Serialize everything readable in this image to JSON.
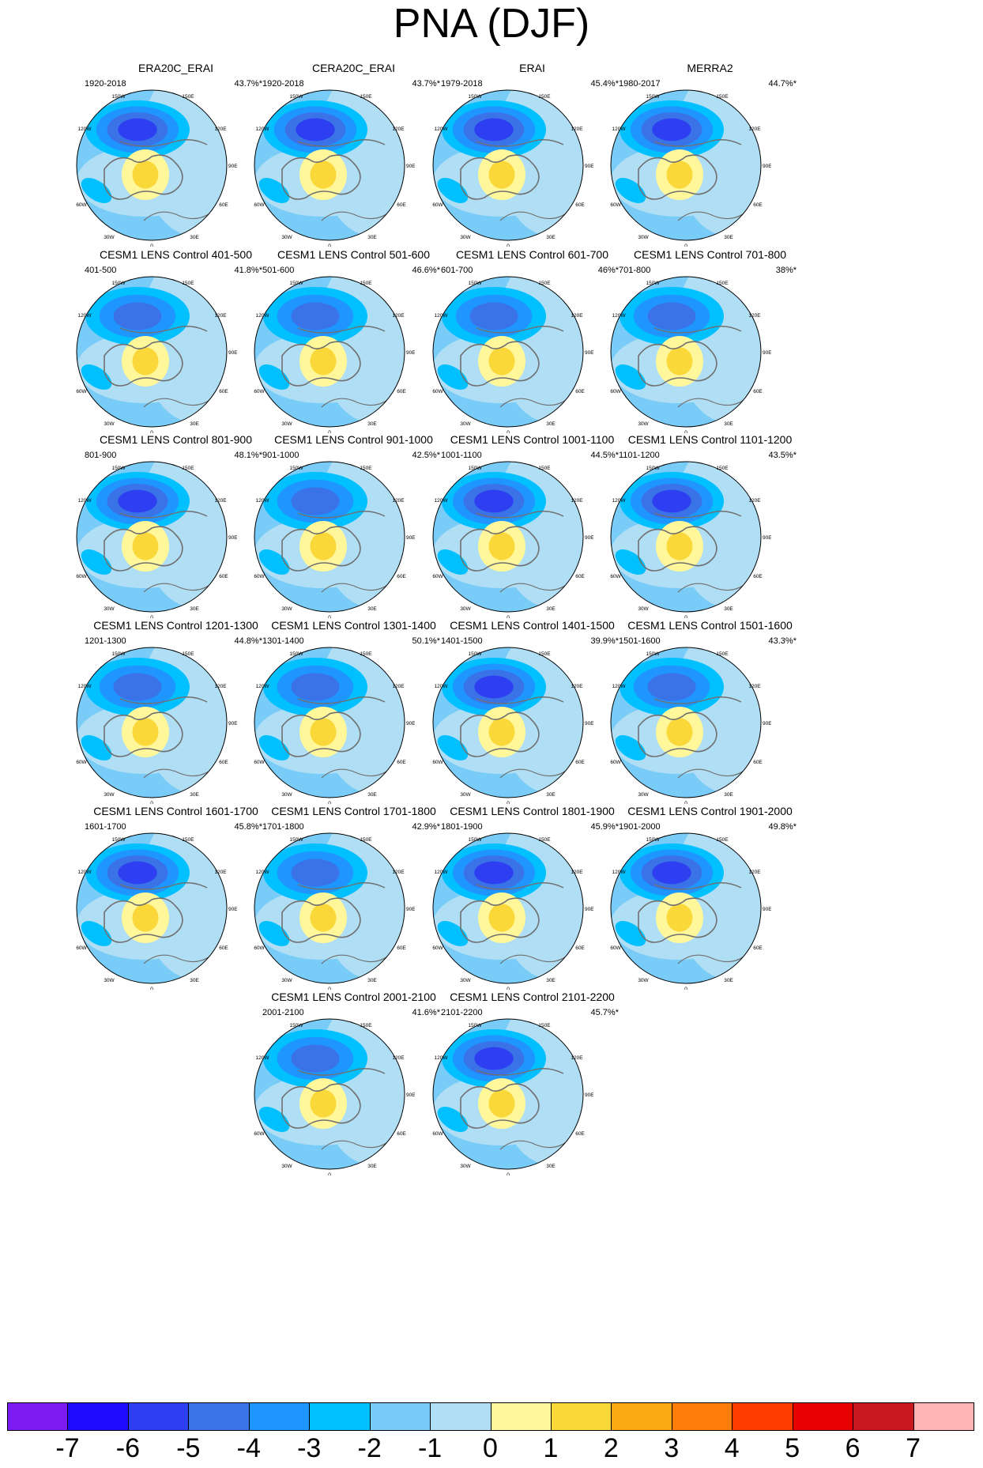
{
  "title": "PNA (DJF)",
  "chart_data": {
    "type": "heatmap",
    "projection": "north polar stereographic",
    "title": "PNA (DJF)",
    "map_labels": {
      "top": "180",
      "left_lon": [
        "150W",
        "120W",
        "90W",
        "60W",
        "30W"
      ],
      "bottom": "0",
      "right_lon": [
        "150E",
        "120E",
        "90E",
        "60E",
        "30E"
      ]
    },
    "colorbar": {
      "colors": [
        "#7d1cf0",
        "#1e0cff",
        "#2d3ff0",
        "#3a72e8",
        "#1f96ff",
        "#00c0ff",
        "#78ccf7",
        "#b0def4",
        "#fff79a",
        "#fbd83a",
        "#faa912",
        "#ff7d0a",
        "#ff3b00",
        "#e60000",
        "#c81a1e",
        "#ffb4b4"
      ],
      "labels": [
        "-7",
        "-6",
        "-5",
        "-4",
        "-3",
        "-2",
        "-1",
        "0",
        "1",
        "2",
        "3",
        "4",
        "5",
        "6",
        "7"
      ]
    },
    "panels": [
      {
        "title": "ERA20C_ERAI",
        "period": "1920-2018",
        "pct": "43.7%*",
        "min_level": -5,
        "max_level": 2
      },
      {
        "title": "CERA20C_ERAI",
        "period": "1920-2018",
        "pct": "43.7%*",
        "min_level": -5,
        "max_level": 2
      },
      {
        "title": "ERAI",
        "period": "1979-2018",
        "pct": "45.4%*",
        "min_level": -5,
        "max_level": 2
      },
      {
        "title": "MERRA2",
        "period": "1980-2017",
        "pct": "44.7%*",
        "min_level": -5,
        "max_level": 2
      },
      {
        "title": "CESM1 LENS Control 401-500",
        "period": "401-500",
        "pct": "41.8%*",
        "min_level": -4,
        "max_level": 2
      },
      {
        "title": "CESM1 LENS Control 501-600",
        "period": "501-600",
        "pct": "46.6%*",
        "min_level": -4,
        "max_level": 2
      },
      {
        "title": "CESM1 LENS Control 601-700",
        "period": "601-700",
        "pct": "46%*",
        "min_level": -4,
        "max_level": 2
      },
      {
        "title": "CESM1 LENS Control 701-800",
        "period": "701-800",
        "pct": "38%*",
        "min_level": -4,
        "max_level": 2
      },
      {
        "title": "CESM1 LENS Control 801-900",
        "period": "801-900",
        "pct": "48.1%*",
        "min_level": -5,
        "max_level": 2
      },
      {
        "title": "CESM1 LENS Control 901-1000",
        "period": "901-1000",
        "pct": "42.5%*",
        "min_level": -4,
        "max_level": 2
      },
      {
        "title": "CESM1 LENS Control 1001-1100",
        "period": "1001-1100",
        "pct": "44.5%*",
        "min_level": -5,
        "max_level": 2
      },
      {
        "title": "CESM1 LENS Control 1101-1200",
        "period": "1101-1200",
        "pct": "43.5%*",
        "min_level": -5,
        "max_level": 2
      },
      {
        "title": "CESM1 LENS Control 1201-1300",
        "period": "1201-1300",
        "pct": "44.8%*",
        "min_level": -4,
        "max_level": 2
      },
      {
        "title": "CESM1 LENS Control 1301-1400",
        "period": "1301-1400",
        "pct": "50.1%*",
        "min_level": -4,
        "max_level": 2
      },
      {
        "title": "CESM1 LENS Control 1401-1500",
        "period": "1401-1500",
        "pct": "39.9%*",
        "min_level": -5,
        "max_level": 2
      },
      {
        "title": "CESM1 LENS Control 1501-1600",
        "period": "1501-1600",
        "pct": "43.3%*",
        "min_level": -4,
        "max_level": 2
      },
      {
        "title": "CESM1 LENS Control 1601-1700",
        "period": "1601-1700",
        "pct": "45.8%*",
        "min_level": -5,
        "max_level": 2
      },
      {
        "title": "CESM1 LENS Control 1701-1800",
        "period": "1701-1800",
        "pct": "42.9%*",
        "min_level": -4,
        "max_level": 2
      },
      {
        "title": "CESM1 LENS Control 1801-1900",
        "period": "1801-1900",
        "pct": "45.9%*",
        "min_level": -5,
        "max_level": 2
      },
      {
        "title": "CESM1 LENS Control 1901-2000",
        "period": "1901-2000",
        "pct": "49.8%*",
        "min_level": -5,
        "max_level": 2
      },
      {
        "title": "CESM1 LENS Control 2001-2100",
        "period": "2001-2100",
        "pct": "41.6%*",
        "min_level": -4,
        "max_level": 2
      },
      {
        "title": "CESM1 LENS Control 2101-2200",
        "period": "2101-2200",
        "pct": "45.7%*",
        "min_level": -5,
        "max_level": 2
      }
    ]
  }
}
